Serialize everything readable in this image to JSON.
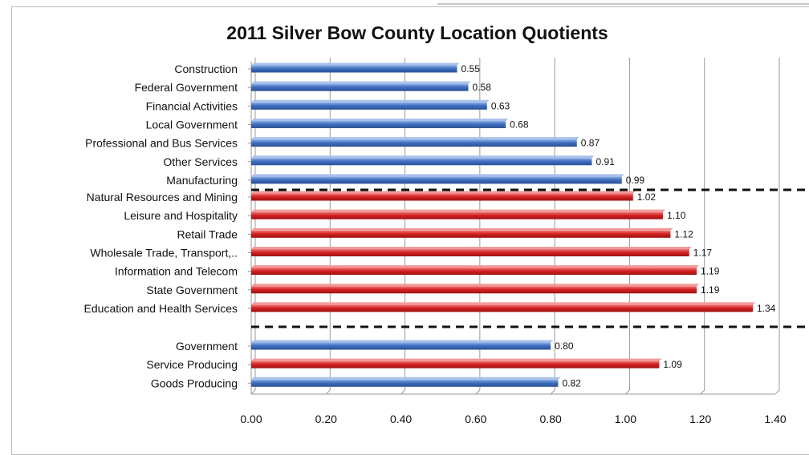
{
  "chart_data": {
    "type": "bar",
    "orientation": "horizontal",
    "title": "2011 Silver Bow County Location Quotients",
    "xlabel": "",
    "ylabel": "",
    "xlim": [
      0,
      1.4
    ],
    "x_ticks": [
      "0.00",
      "0.20",
      "0.40",
      "0.60",
      "0.80",
      "1.00",
      "1.20",
      "1.40"
    ],
    "grid": "vertical",
    "legend": "none",
    "colors": {
      "below_one": "#3f6fbf",
      "above_one": "#d42222"
    },
    "groups": [
      {
        "bars": [
          {
            "category": "Construction",
            "value": 0.55,
            "label": "0.55",
            "color": "below_one"
          },
          {
            "category": "Federal Government",
            "value": 0.58,
            "label": "0.58",
            "color": "below_one"
          },
          {
            "category": "Financial Activities",
            "value": 0.63,
            "label": "0.63",
            "color": "below_one"
          },
          {
            "category": "Local Government",
            "value": 0.68,
            "label": "0.68",
            "color": "below_one"
          },
          {
            "category": "Professional and Bus Services",
            "value": 0.87,
            "label": "0.87",
            "color": "below_one"
          },
          {
            "category": "Other Services",
            "value": 0.91,
            "label": "0.91",
            "color": "below_one"
          },
          {
            "category": "Manufacturing",
            "value": 0.99,
            "label": "0.99",
            "color": "below_one"
          }
        ]
      },
      {
        "bars": [
          {
            "category": "Natural Resources and Mining",
            "value": 1.02,
            "label": "1.02",
            "color": "above_one"
          },
          {
            "category": "Leisure and Hospitality",
            "value": 1.1,
            "label": "1.10",
            "color": "above_one"
          },
          {
            "category": "Retail Trade",
            "value": 1.12,
            "label": "1.12",
            "color": "above_one"
          },
          {
            "category": "Wholesale Trade, Transport,..",
            "value": 1.17,
            "label": "1.17",
            "color": "above_one"
          },
          {
            "category": "Information and Telecom",
            "value": 1.19,
            "label": "1.19",
            "color": "above_one"
          },
          {
            "category": "State Government",
            "value": 1.19,
            "label": "1.19",
            "color": "above_one"
          },
          {
            "category": "Education and Health Services",
            "value": 1.34,
            "label": "1.34",
            "color": "above_one"
          }
        ]
      },
      {
        "bars": [
          {
            "category": "Government",
            "value": 0.8,
            "label": "0.80",
            "color": "below_one"
          },
          {
            "category": "Service Producing",
            "value": 1.09,
            "label": "1.09",
            "color": "above_one"
          },
          {
            "category": "Goods Producing",
            "value": 0.82,
            "label": "0.82",
            "color": "below_one"
          }
        ]
      }
    ]
  }
}
